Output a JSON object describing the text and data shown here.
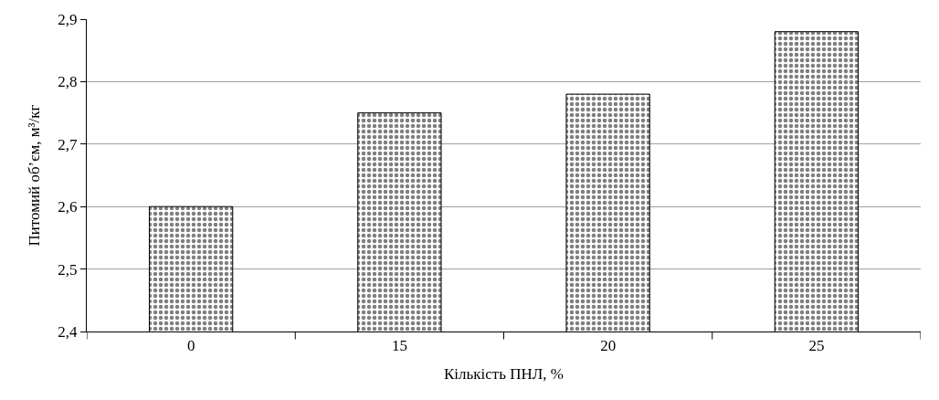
{
  "chart_data": {
    "type": "bar",
    "xlabel": "Кількість ПНЛ, %",
    "ylabel": "Питомий об’єм, м³/кг",
    "categories": [
      "0",
      "15",
      "20",
      "25"
    ],
    "values": [
      2.6,
      2.75,
      2.78,
      2.88
    ],
    "color": "#000000",
    "ylim": [
      2.4,
      2.9
    ],
    "yticks": [
      {
        "value": 2.4,
        "label": "2,4"
      },
      {
        "value": 2.5,
        "label": "2,5"
      },
      {
        "value": 2.6,
        "label": "2,6"
      },
      {
        "value": 2.7,
        "label": "2,7"
      },
      {
        "value": 2.8,
        "label": "2,8"
      },
      {
        "value": 2.9,
        "label": "2,9"
      }
    ],
    "grid": "y"
  }
}
